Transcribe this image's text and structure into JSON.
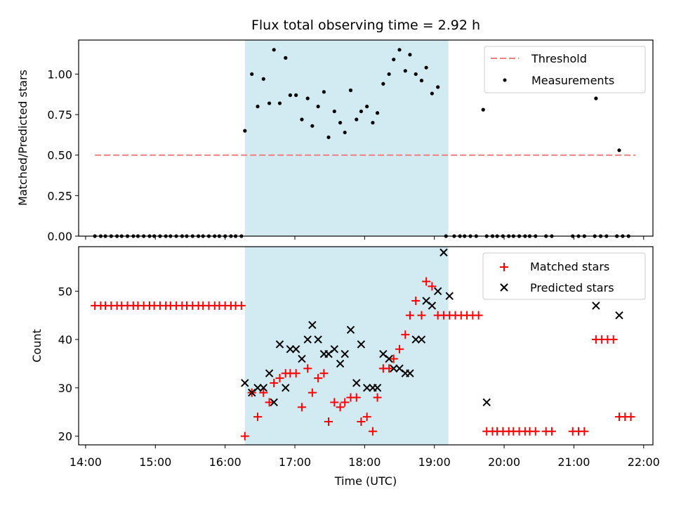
{
  "chart_data": [
    {
      "type": "scatter",
      "title": "Flux total observing time = 2.92 h",
      "xlabel": "",
      "ylabel": "Matched/Predicted stars",
      "ylim": [
        0,
        1.21
      ],
      "xlim": [
        "13:54",
        "22:08"
      ],
      "yticks": [
        "0.00",
        "0.25",
        "0.50",
        "0.75",
        "1.00"
      ],
      "shaded_region": {
        "start": "16:17",
        "end": "19:12",
        "color": "#add8e6"
      },
      "legend": {
        "placement": "top-right",
        "entries": [
          "Threshold",
          "Measurements"
        ]
      },
      "threshold": {
        "name": "Threshold",
        "value": 0.5,
        "x_start": "14:08",
        "x_end": "21:53",
        "color": "#f08080",
        "style": "dashed"
      },
      "series": [
        {
          "name": "Measurements",
          "color": "#000000",
          "points": [
            [
              "14:08",
              0
            ],
            [
              "14:13",
              0
            ],
            [
              "14:17",
              0
            ],
            [
              "14:22",
              0
            ],
            [
              "14:27",
              0
            ],
            [
              "14:31",
              0
            ],
            [
              "14:36",
              0
            ],
            [
              "14:41",
              0
            ],
            [
              "14:45",
              0
            ],
            [
              "14:50",
              0
            ],
            [
              "14:55",
              0
            ],
            [
              "14:59",
              0
            ],
            [
              "15:04",
              0
            ],
            [
              "15:09",
              0
            ],
            [
              "15:13",
              0
            ],
            [
              "15:18",
              0
            ],
            [
              "15:23",
              0
            ],
            [
              "15:27",
              0
            ],
            [
              "15:32",
              0
            ],
            [
              "15:37",
              0
            ],
            [
              "15:41",
              0
            ],
            [
              "15:46",
              0
            ],
            [
              "15:51",
              0
            ],
            [
              "15:55",
              0
            ],
            [
              "16:00",
              0
            ],
            [
              "16:05",
              0
            ],
            [
              "16:09",
              0
            ],
            [
              "16:14",
              0
            ],
            [
              "16:17",
              0.65
            ],
            [
              "16:23",
              1.0
            ],
            [
              "16:28",
              0.8
            ],
            [
              "16:33",
              0.97
            ],
            [
              "16:38",
              0.82
            ],
            [
              "16:42",
              1.15
            ],
            [
              "16:47",
              0.82
            ],
            [
              "16:52",
              1.1
            ],
            [
              "16:56",
              0.87
            ],
            [
              "17:01",
              0.87
            ],
            [
              "17:06",
              0.72
            ],
            [
              "17:11",
              0.85
            ],
            [
              "17:15",
              0.68
            ],
            [
              "17:20",
              0.8
            ],
            [
              "17:25",
              0.89
            ],
            [
              "17:29",
              0.61
            ],
            [
              "17:34",
              0.77
            ],
            [
              "17:39",
              0.7
            ],
            [
              "17:43",
              0.64
            ],
            [
              "17:48",
              0.9
            ],
            [
              "17:53",
              0.72
            ],
            [
              "17:57",
              0.77
            ],
            [
              "18:02",
              0.8
            ],
            [
              "18:07",
              0.7
            ],
            [
              "18:11",
              0.76
            ],
            [
              "18:16",
              0.94
            ],
            [
              "18:21",
              1.0
            ],
            [
              "18:25",
              1.09
            ],
            [
              "18:30",
              1.15
            ],
            [
              "18:35",
              1.02
            ],
            [
              "18:39",
              1.12
            ],
            [
              "18:44",
              1.0
            ],
            [
              "18:49",
              0.96
            ],
            [
              "18:53",
              1.04
            ],
            [
              "18:58",
              0.88
            ],
            [
              "19:03",
              0.92
            ],
            [
              "19:10",
              0
            ],
            [
              "19:17",
              0
            ],
            [
              "19:22",
              0
            ],
            [
              "19:26",
              0
            ],
            [
              "19:31",
              0
            ],
            [
              "19:36",
              0
            ],
            [
              "19:45",
              0
            ],
            [
              "19:50",
              0
            ],
            [
              "19:54",
              0
            ],
            [
              "19:59",
              0
            ],
            [
              "20:04",
              0
            ],
            [
              "20:08",
              0
            ],
            [
              "20:13",
              0
            ],
            [
              "20:18",
              0
            ],
            [
              "20:22",
              0
            ],
            [
              "20:27",
              0
            ],
            [
              "20:36",
              0
            ],
            [
              "20:41",
              0
            ],
            [
              "20:59",
              0
            ],
            [
              "21:04",
              0
            ],
            [
              "21:09",
              0
            ],
            [
              "21:18",
              0
            ],
            [
              "21:23",
              0
            ],
            [
              "21:28",
              0
            ],
            [
              "21:37",
              0
            ],
            [
              "21:42",
              0
            ],
            [
              "21:47",
              0
            ],
            [
              "19:42",
              0.78
            ],
            [
              "21:19",
              0.85
            ],
            [
              "21:39",
              0.53
            ]
          ]
        }
      ]
    },
    {
      "type": "scatter",
      "title": "",
      "xlabel": "Time (UTC)",
      "ylabel": "Count",
      "ylim": [
        18.2,
        59.2
      ],
      "xlim": [
        "13:54",
        "22:08"
      ],
      "yticks": [
        "20",
        "30",
        "40",
        "50"
      ],
      "xticks": [
        "14:00",
        "15:00",
        "16:00",
        "17:00",
        "18:00",
        "19:00",
        "20:00",
        "21:00",
        "22:00"
      ],
      "shaded_region": {
        "start": "16:17",
        "end": "19:12",
        "color": "#add8e6"
      },
      "legend": {
        "placement": "top-right",
        "entries": [
          "Matched stars",
          "Predicted stars"
        ]
      },
      "series": [
        {
          "name": "Matched stars",
          "color": "#ff0000",
          "marker": "plus",
          "points": [
            [
              "14:08",
              47
            ],
            [
              "14:13",
              47
            ],
            [
              "14:17",
              47
            ],
            [
              "14:22",
              47
            ],
            [
              "14:27",
              47
            ],
            [
              "14:31",
              47
            ],
            [
              "14:36",
              47
            ],
            [
              "14:41",
              47
            ],
            [
              "14:45",
              47
            ],
            [
              "14:50",
              47
            ],
            [
              "14:55",
              47
            ],
            [
              "14:59",
              47
            ],
            [
              "15:04",
              47
            ],
            [
              "15:09",
              47
            ],
            [
              "15:13",
              47
            ],
            [
              "15:18",
              47
            ],
            [
              "15:23",
              47
            ],
            [
              "15:27",
              47
            ],
            [
              "15:32",
              47
            ],
            [
              "15:37",
              47
            ],
            [
              "15:41",
              47
            ],
            [
              "15:46",
              47
            ],
            [
              "15:51",
              47
            ],
            [
              "15:55",
              47
            ],
            [
              "16:00",
              47
            ],
            [
              "16:05",
              47
            ],
            [
              "16:09",
              47
            ],
            [
              "16:14",
              47
            ],
            [
              "16:17",
              20
            ],
            [
              "16:23",
              29
            ],
            [
              "16:28",
              24
            ],
            [
              "16:33",
              29
            ],
            [
              "16:38",
              27
            ],
            [
              "16:42",
              31
            ],
            [
              "16:47",
              32
            ],
            [
              "16:52",
              33
            ],
            [
              "16:56",
              33
            ],
            [
              "17:01",
              33
            ],
            [
              "17:06",
              26
            ],
            [
              "17:11",
              34
            ],
            [
              "17:15",
              29
            ],
            [
              "17:20",
              32
            ],
            [
              "17:25",
              33
            ],
            [
              "17:29",
              23
            ],
            [
              "17:34",
              27
            ],
            [
              "17:39",
              26
            ],
            [
              "17:43",
              27
            ],
            [
              "17:48",
              28
            ],
            [
              "17:53",
              28
            ],
            [
              "17:57",
              23
            ],
            [
              "18:02",
              24
            ],
            [
              "18:07",
              21
            ],
            [
              "18:11",
              28
            ],
            [
              "18:16",
              34
            ],
            [
              "18:21",
              34
            ],
            [
              "18:25",
              36
            ],
            [
              "18:30",
              38
            ],
            [
              "18:35",
              41
            ],
            [
              "18:39",
              45
            ],
            [
              "18:44",
              48
            ],
            [
              "18:49",
              45
            ],
            [
              "18:53",
              52
            ],
            [
              "18:58",
              51
            ],
            [
              "19:03",
              45
            ],
            [
              "19:08",
              45
            ],
            [
              "19:13",
              45
            ],
            [
              "19:18",
              45
            ],
            [
              "19:23",
              45
            ],
            [
              "19:28",
              45
            ],
            [
              "19:33",
              45
            ],
            [
              "19:38",
              45
            ],
            [
              "19:45",
              21
            ],
            [
              "19:50",
              21
            ],
            [
              "19:54",
              21
            ],
            [
              "19:59",
              21
            ],
            [
              "20:04",
              21
            ],
            [
              "20:08",
              21
            ],
            [
              "20:13",
              21
            ],
            [
              "20:18",
              21
            ],
            [
              "20:22",
              21
            ],
            [
              "20:27",
              21
            ],
            [
              "20:36",
              21
            ],
            [
              "20:41",
              21
            ],
            [
              "20:59",
              21
            ],
            [
              "21:04",
              21
            ],
            [
              "21:09",
              21
            ],
            [
              "21:19",
              40
            ],
            [
              "21:24",
              40
            ],
            [
              "21:29",
              40
            ],
            [
              "21:34",
              40
            ],
            [
              "21:39",
              24
            ],
            [
              "21:44",
              24
            ],
            [
              "21:49",
              24
            ]
          ]
        },
        {
          "name": "Predicted stars",
          "color": "#000000",
          "marker": "x",
          "points": [
            [
              "16:17",
              31
            ],
            [
              "16:23",
              29
            ],
            [
              "16:28",
              30
            ],
            [
              "16:33",
              30
            ],
            [
              "16:38",
              33
            ],
            [
              "16:42",
              27
            ],
            [
              "16:47",
              39
            ],
            [
              "16:52",
              30
            ],
            [
              "16:56",
              38
            ],
            [
              "17:01",
              38
            ],
            [
              "17:06",
              36
            ],
            [
              "17:11",
              40
            ],
            [
              "17:15",
              43
            ],
            [
              "17:20",
              40
            ],
            [
              "17:25",
              37
            ],
            [
              "17:29",
              37
            ],
            [
              "17:34",
              38
            ],
            [
              "17:39",
              35
            ],
            [
              "17:43",
              37
            ],
            [
              "17:48",
              42
            ],
            [
              "17:53",
              31
            ],
            [
              "17:57",
              39
            ],
            [
              "18:02",
              30
            ],
            [
              "18:07",
              30
            ],
            [
              "18:11",
              30
            ],
            [
              "18:16",
              37
            ],
            [
              "18:21",
              36
            ],
            [
              "18:25",
              34
            ],
            [
              "18:30",
              34
            ],
            [
              "18:35",
              33
            ],
            [
              "18:39",
              33
            ],
            [
              "18:44",
              40
            ],
            [
              "18:49",
              40
            ],
            [
              "18:53",
              48
            ],
            [
              "18:58",
              47
            ],
            [
              "19:03",
              50
            ],
            [
              "19:08",
              58
            ],
            [
              "19:13",
              49
            ],
            [
              "19:45",
              27
            ],
            [
              "21:19",
              47
            ],
            [
              "21:39",
              45
            ]
          ]
        }
      ]
    }
  ]
}
